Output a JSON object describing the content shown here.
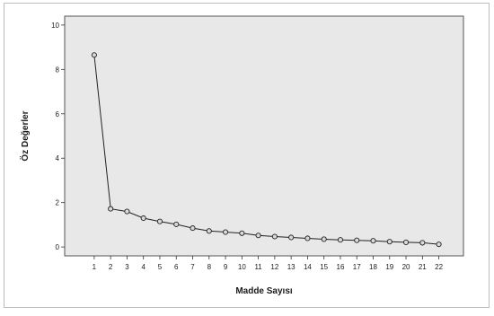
{
  "chart_data": {
    "type": "line",
    "title": "",
    "xlabel": "Madde Sayısı",
    "ylabel": "Öz Değerler",
    "x": [
      1,
      2,
      3,
      4,
      5,
      6,
      7,
      8,
      9,
      10,
      11,
      12,
      13,
      14,
      15,
      16,
      17,
      18,
      19,
      20,
      21,
      22
    ],
    "x_tick_labels": [
      "1",
      "2",
      "3",
      "4",
      "5",
      "6",
      "7",
      "8",
      "9",
      "10",
      "11",
      "12",
      "13",
      "14",
      "15",
      "16",
      "17",
      "18",
      "19",
      "20",
      "21",
      "22"
    ],
    "y_ticks": [
      0,
      2,
      4,
      6,
      8,
      10
    ],
    "y_tick_labels": [
      "0",
      "2",
      "4",
      "6",
      "8",
      "10"
    ],
    "ylim": [
      -0.4,
      10.4
    ],
    "xlim": [
      -0.8,
      23.5
    ],
    "series": [
      {
        "values": [
          8.65,
          1.72,
          1.6,
          1.3,
          1.15,
          1.02,
          0.85,
          0.72,
          0.67,
          0.62,
          0.52,
          0.47,
          0.43,
          0.39,
          0.35,
          0.32,
          0.3,
          0.28,
          0.24,
          0.21,
          0.19,
          0.12
        ]
      }
    ],
    "grid": false,
    "legend": "none",
    "colors": {
      "plot_background": "#e8e8e8",
      "line": "#222222",
      "marker_fill": "#d9d9d9"
    }
  }
}
